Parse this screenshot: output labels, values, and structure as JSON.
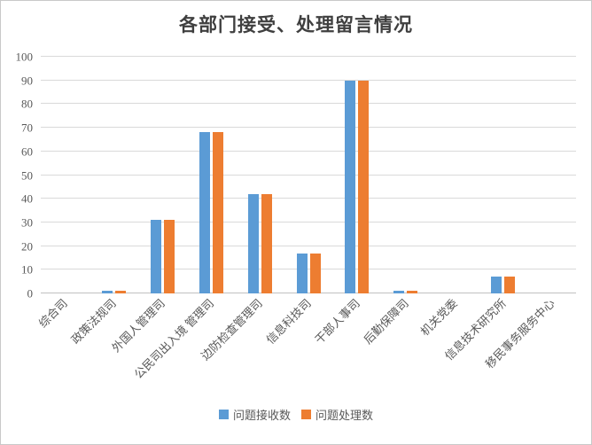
{
  "chart_data": {
    "type": "bar",
    "title": "各部门接受、处理留言情况",
    "categories": [
      "综合司",
      "政策法规司",
      "外国人管理司",
      "公民司出入境 管理司",
      "边防检查管理司",
      "信息科技司",
      "干部人事司",
      "后勤保障司",
      "机关党委",
      "信息技术研究所",
      "移民事务服务中心"
    ],
    "series": [
      {
        "name": "问题接收数",
        "color": "#5B9BD5",
        "values": [
          0,
          1,
          31,
          68,
          42,
          17,
          90,
          1,
          0,
          7,
          0
        ]
      },
      {
        "name": "问题处理数",
        "color": "#ED7D31",
        "values": [
          0,
          1,
          31,
          68,
          42,
          17,
          90,
          1,
          0,
          7,
          0
        ]
      }
    ],
    "xlabel": "",
    "ylabel": "",
    "ylim": [
      0,
      100
    ],
    "ytick_step": 10,
    "yticks": [
      "0",
      "10",
      "20",
      "30",
      "40",
      "50",
      "60",
      "70",
      "80",
      "90",
      "100"
    ],
    "grid": true,
    "legend_position": "bottom"
  },
  "colors": {
    "background": "#FFFFFF",
    "frame_border": "#C9C9C9",
    "gridline": "#D9D9D9",
    "axis_line": "#C0C0C0",
    "tick_text": "#595959",
    "title_text": "#3F3F3F"
  }
}
